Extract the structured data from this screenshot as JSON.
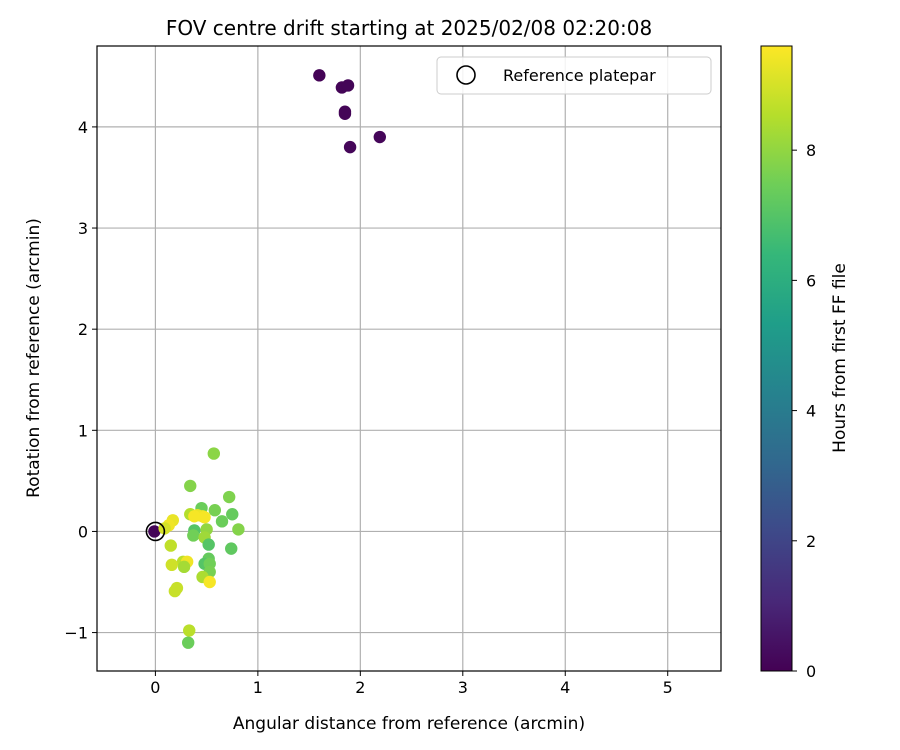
{
  "chart_data": {
    "type": "scatter",
    "title": "FOV centre drift starting at 2025/02/08 02:20:08",
    "xlabel": "Angular distance from reference (arcmin)",
    "ylabel": "Rotation from reference (arcmin)",
    "xlim": [
      -0.57,
      5.52
    ],
    "ylim": [
      -1.38,
      4.8
    ],
    "xticks": [
      0,
      1,
      2,
      3,
      4,
      5
    ],
    "yticks": [
      -1,
      0,
      1,
      2,
      3,
      4
    ],
    "grid": true,
    "legend": {
      "position": "top-right",
      "entries": [
        "Reference platepar"
      ]
    },
    "reference_point": {
      "x": 0,
      "y": 0
    },
    "colorbar": {
      "label": "Hours from first FF file",
      "colormap": "viridis",
      "range": [
        0,
        9.6
      ],
      "ticks": [
        0,
        2,
        4,
        6,
        8
      ],
      "colors": [
        "#440154",
        "#482878",
        "#3e4989",
        "#31688e",
        "#26828e",
        "#1f9e89",
        "#35b779",
        "#6ece58",
        "#b5de2b",
        "#fde725"
      ]
    },
    "points": [
      {
        "x": 1.6,
        "y": 4.51,
        "c": 0.05
      },
      {
        "x": 1.82,
        "y": 4.39,
        "c": 0.1
      },
      {
        "x": 1.88,
        "y": 4.41,
        "c": 0.1
      },
      {
        "x": 1.85,
        "y": 4.15,
        "c": 0.1
      },
      {
        "x": 1.85,
        "y": 4.13,
        "c": 0.1
      },
      {
        "x": 2.19,
        "y": 3.9,
        "c": 0.15
      },
      {
        "x": 1.9,
        "y": 3.8,
        "c": 0.15
      },
      {
        "x": -0.01,
        "y": 0.0,
        "c": 0.1
      },
      {
        "x": 0.57,
        "y": 0.77,
        "c": 7.9
      },
      {
        "x": 0.34,
        "y": 0.45,
        "c": 7.8
      },
      {
        "x": 0.72,
        "y": 0.34,
        "c": 7.7
      },
      {
        "x": 0.45,
        "y": 0.23,
        "c": 7.4
      },
      {
        "x": 0.58,
        "y": 0.21,
        "c": 7.6
      },
      {
        "x": 0.75,
        "y": 0.17,
        "c": 7.3
      },
      {
        "x": 0.34,
        "y": 0.17,
        "c": 8.5
      },
      {
        "x": 0.41,
        "y": 0.16,
        "c": 9.3
      },
      {
        "x": 0.46,
        "y": 0.15,
        "c": 9.4
      },
      {
        "x": 0.38,
        "y": 0.15,
        "c": 9.5
      },
      {
        "x": 0.48,
        "y": 0.14,
        "c": 9.5
      },
      {
        "x": 0.17,
        "y": 0.11,
        "c": 9.3
      },
      {
        "x": 0.65,
        "y": 0.1,
        "c": 7.4
      },
      {
        "x": 0.13,
        "y": 0.06,
        "c": 9.4
      },
      {
        "x": 0.09,
        "y": 0.03,
        "c": 9.0
      },
      {
        "x": 0.81,
        "y": 0.02,
        "c": 7.8
      },
      {
        "x": 0.38,
        "y": 0.01,
        "c": 7.0
      },
      {
        "x": 0.5,
        "y": 0.02,
        "c": 8.0
      },
      {
        "x": 0.37,
        "y": -0.04,
        "c": 7.5
      },
      {
        "x": 0.48,
        "y": -0.06,
        "c": 8.2
      },
      {
        "x": 0.52,
        "y": -0.13,
        "c": 7.0
      },
      {
        "x": 0.15,
        "y": -0.14,
        "c": 8.7
      },
      {
        "x": 0.74,
        "y": -0.17,
        "c": 7.2
      },
      {
        "x": 0.52,
        "y": -0.27,
        "c": 7.3
      },
      {
        "x": 0.48,
        "y": -0.32,
        "c": 7.0
      },
      {
        "x": 0.53,
        "y": -0.32,
        "c": 7.5
      },
      {
        "x": 0.27,
        "y": -0.3,
        "c": 8.6
      },
      {
        "x": 0.31,
        "y": -0.3,
        "c": 9.4
      },
      {
        "x": 0.16,
        "y": -0.33,
        "c": 8.9
      },
      {
        "x": 0.28,
        "y": -0.35,
        "c": 8.3
      },
      {
        "x": 0.53,
        "y": -0.4,
        "c": 7.6
      },
      {
        "x": 0.46,
        "y": -0.45,
        "c": 8.4
      },
      {
        "x": 0.53,
        "y": -0.5,
        "c": 9.5
      },
      {
        "x": 0.21,
        "y": -0.56,
        "c": 8.8
      },
      {
        "x": 0.19,
        "y": -0.59,
        "c": 8.8
      },
      {
        "x": 0.33,
        "y": -0.98,
        "c": 8.6
      },
      {
        "x": 0.32,
        "y": -1.1,
        "c": 7.4
      }
    ]
  }
}
